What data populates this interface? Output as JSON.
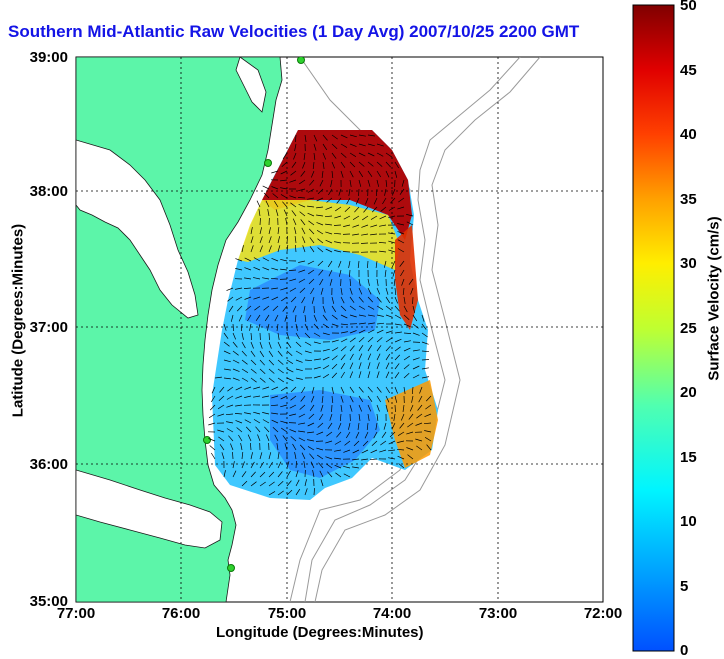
{
  "title": "Southern Mid-Atlantic Raw Velocities (1 Day Avg) 2007/10/25 2200 GMT",
  "axes": {
    "xlabel": "Longitude (Degrees:Minutes)",
    "ylabel": "Latitude (Degrees:Minutes)",
    "x_ticks": [
      "77:00",
      "76:00",
      "75:00",
      "74:00",
      "73:00",
      "72:00"
    ],
    "y_ticks": [
      "39:00",
      "38:00",
      "37:00",
      "36:00",
      "35:00"
    ],
    "grid": "dotted"
  },
  "colorbar": {
    "label": "Surface Velocity (cm/s)",
    "ticks": [
      "50",
      "45",
      "40",
      "35",
      "30",
      "25",
      "20",
      "15",
      "10",
      "5",
      "0"
    ],
    "min": 0,
    "max": 50,
    "colormap": "jet"
  },
  "colors": {
    "land": "#5cf5a9",
    "water": "#ffffff",
    "title": "#1414e6",
    "station": "#2ed12e",
    "bathymetry": "#9a9a9a"
  }
}
